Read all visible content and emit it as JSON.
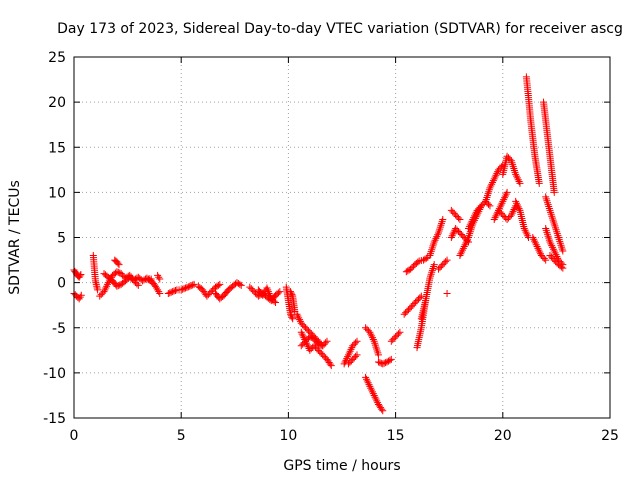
{
  "chart_data": {
    "type": "scatter",
    "title": "Day 173 of 2023, Sidereal Day-to-day VTEC variation (SDTVAR) for receiver ascg",
    "xlabel": "GPS time / hours",
    "ylabel": "SDTVAR / TECUs",
    "xlim": [
      0,
      25
    ],
    "ylim": [
      -15,
      25
    ],
    "xticks": [
      0,
      5,
      10,
      15,
      20,
      25
    ],
    "yticks": [
      -15,
      -10,
      -5,
      0,
      5,
      10,
      15,
      20,
      25
    ],
    "xtick_labels": [
      "0",
      "5",
      "10",
      "15",
      "20",
      "25"
    ],
    "ytick_labels": [
      "-15",
      "-10",
      "-5",
      "0",
      "5",
      "10",
      "15",
      "20",
      "25"
    ],
    "grid": true,
    "marker": "+",
    "series_color": "#ff0000",
    "tracks": [
      {
        "x": [
          0.0,
          0.08,
          0.16,
          0.24,
          0.32
        ],
        "y": [
          1.4,
          1.1,
          0.8,
          0.6,
          0.9
        ]
      },
      {
        "x": [
          0.0,
          0.12,
          0.24,
          0.34
        ],
        "y": [
          -1.2,
          -1.5,
          -1.8,
          -1.4
        ]
      },
      {
        "x": [
          0.9,
          1.0,
          1.1
        ],
        "y": [
          3.0,
          0.2,
          -0.8
        ]
      },
      {
        "x": [
          1.2,
          1.4,
          1.6,
          1.8,
          2.0,
          2.2,
          2.4,
          2.6,
          2.8,
          3.0,
          3.2,
          3.4,
          3.6
        ],
        "y": [
          -1.5,
          -1.0,
          0.0,
          0.8,
          1.2,
          1.0,
          0.5,
          0.8,
          0.3,
          0.6,
          0.2,
          0.5,
          0.4
        ]
      },
      {
        "x": [
          1.4,
          1.6,
          1.8,
          2.0,
          2.2,
          2.4,
          2.6,
          2.8,
          3.0
        ],
        "y": [
          1.0,
          0.6,
          0.2,
          -0.4,
          -0.2,
          0.2,
          0.6,
          0.2,
          -0.3
        ]
      },
      {
        "x": [
          1.9,
          2.0,
          2.1
        ],
        "y": [
          2.5,
          2.3,
          2.0
        ]
      },
      {
        "x": [
          3.4,
          3.6,
          3.8,
          4.0
        ],
        "y": [
          0.4,
          0.2,
          -0.4,
          -1.2
        ]
      },
      {
        "x": [
          3.9,
          4.0
        ],
        "y": [
          0.8,
          0.4
        ]
      },
      {
        "x": [
          4.4,
          4.6,
          4.8,
          5.0,
          5.2,
          5.4,
          5.6
        ],
        "y": [
          -1.2,
          -1.0,
          -0.8,
          -0.8,
          -0.6,
          -0.4,
          -0.2
        ]
      },
      {
        "x": [
          5.8,
          6.0,
          6.2,
          6.4,
          6.6,
          6.8
        ],
        "y": [
          -0.4,
          -0.8,
          -1.5,
          -1.0,
          -0.5,
          -0.2
        ]
      },
      {
        "x": [
          6.6,
          6.8,
          7.0,
          7.2,
          7.4,
          7.6,
          7.8
        ],
        "y": [
          -1.2,
          -1.8,
          -1.4,
          -0.8,
          -0.4,
          0.0,
          -0.3
        ]
      },
      {
        "x": [
          8.2,
          8.4,
          8.6,
          8.8,
          9.0,
          9.2,
          9.4,
          9.6
        ],
        "y": [
          -0.5,
          -1.0,
          -1.5,
          -1.2,
          -1.6,
          -2.0,
          -1.4,
          -1.0
        ]
      },
      {
        "x": [
          8.6,
          8.8,
          9.0,
          9.2,
          9.4
        ],
        "y": [
          -0.8,
          -1.4,
          -0.6,
          -1.8,
          -2.2
        ]
      },
      {
        "x": [
          9.9,
          10.0,
          10.1,
          10.2
        ],
        "y": [
          -0.5,
          -2.0,
          -3.5,
          -4.0
        ]
      },
      {
        "x": [
          10.1,
          10.2,
          10.3
        ],
        "y": [
          -1.0,
          -1.5,
          -3.2
        ]
      },
      {
        "x": [
          10.6,
          10.8,
          11.0,
          11.2,
          11.4,
          11.6,
          11.8,
          12.0
        ],
        "y": [
          -5.5,
          -6.5,
          -7.5,
          -7.0,
          -7.5,
          -8.0,
          -8.5,
          -9.2
        ]
      },
      {
        "x": [
          10.6,
          10.8,
          11.0,
          11.2,
          11.4,
          11.6,
          11.8
        ],
        "y": [
          -7.0,
          -6.5,
          -6.0,
          -6.2,
          -6.8,
          -7.0,
          -6.5
        ]
      },
      {
        "x": [
          10.4,
          10.6,
          10.8,
          11.0,
          11.2,
          11.4,
          11.6
        ],
        "y": [
          -3.5,
          -4.5,
          -5.0,
          -5.5,
          -6.0,
          -6.5,
          -7.0
        ]
      },
      {
        "x": [
          12.6,
          12.8,
          13.0,
          13.2
        ],
        "y": [
          -9.0,
          -8.0,
          -7.0,
          -6.5
        ]
      },
      {
        "x": [
          12.8,
          13.0,
          13.2
        ],
        "y": [
          -9.0,
          -8.5,
          -8.0
        ]
      },
      {
        "x": [
          13.6,
          13.8,
          14.0,
          14.2,
          14.4
        ],
        "y": [
          -10.5,
          -11.5,
          -12.5,
          -13.5,
          -14.2
        ]
      },
      {
        "x": [
          13.6,
          13.8,
          14.0,
          14.2
        ],
        "y": [
          -5.0,
          -5.5,
          -6.5,
          -8.0
        ]
      },
      {
        "x": [
          14.2,
          14.4,
          14.6,
          14.8
        ],
        "y": [
          -8.8,
          -9.0,
          -8.8,
          -8.5
        ]
      },
      {
        "x": [
          14.8,
          15.0,
          15.2
        ],
        "y": [
          -6.5,
          -6.0,
          -5.5
        ]
      },
      {
        "x": [
          15.4,
          15.6,
          15.8,
          16.0,
          16.2
        ],
        "y": [
          -3.5,
          -3.0,
          -2.5,
          -2.0,
          -1.5
        ]
      },
      {
        "x": [
          15.5,
          15.7,
          15.9,
          16.1,
          16.3,
          16.5
        ],
        "y": [
          1.2,
          1.5,
          2.0,
          2.4,
          2.5,
          2.8
        ]
      },
      {
        "x": [
          16.0,
          16.2,
          16.4
        ],
        "y": [
          -7.2,
          -5.0,
          -2.0
        ]
      },
      {
        "x": [
          16.2,
          16.4,
          16.6,
          16.8
        ],
        "y": [
          -4.0,
          -2.0,
          0.5,
          2.0
        ]
      },
      {
        "x": [
          16.6,
          16.8,
          17.0,
          17.2
        ],
        "y": [
          3.0,
          4.5,
          5.5,
          7.0
        ]
      },
      {
        "x": [
          17.0,
          17.2,
          17.4
        ],
        "y": [
          1.5,
          2.0,
          2.5
        ]
      },
      {
        "x": [
          17.4
        ],
        "y": [
          -1.2
        ]
      },
      {
        "x": [
          17.6,
          17.8,
          18.0,
          18.2,
          18.4
        ],
        "y": [
          5.0,
          6.0,
          5.5,
          5.0,
          4.5
        ]
      },
      {
        "x": [
          17.6,
          17.8,
          18.0
        ],
        "y": [
          8.0,
          7.5,
          7.0
        ]
      },
      {
        "x": [
          18.0,
          18.2,
          18.4,
          18.6,
          18.8,
          19.0
        ],
        "y": [
          3.0,
          4.0,
          5.0,
          6.5,
          7.5,
          8.5
        ]
      },
      {
        "x": [
          18.4,
          18.6,
          18.8,
          19.0,
          19.2,
          19.4
        ],
        "y": [
          6.0,
          7.0,
          8.0,
          8.5,
          9.0,
          8.5
        ]
      },
      {
        "x": [
          19.2,
          19.4,
          19.6,
          19.8,
          20.0
        ],
        "y": [
          9.0,
          10.5,
          11.5,
          12.5,
          13.0
        ]
      },
      {
        "x": [
          19.6,
          19.8,
          20.0,
          20.2
        ],
        "y": [
          7.0,
          8.0,
          9.0,
          10.0
        ]
      },
      {
        "x": [
          19.8,
          20.0,
          20.2,
          20.4,
          20.6
        ],
        "y": [
          8.0,
          7.5,
          7.0,
          7.5,
          8.5
        ]
      },
      {
        "x": [
          20.0,
          20.2,
          20.4,
          20.6,
          20.8
        ],
        "y": [
          12.0,
          14.0,
          13.5,
          12.0,
          11.0
        ]
      },
      {
        "x": [
          20.6,
          20.8,
          21.0,
          21.2
        ],
        "y": [
          9.0,
          8.0,
          6.0,
          5.0
        ]
      },
      {
        "x": [
          21.1,
          21.2,
          21.3,
          21.4,
          21.5,
          21.6,
          21.7
        ],
        "y": [
          22.8,
          20.5,
          18.0,
          16.0,
          14.0,
          12.5,
          11.0
        ]
      },
      {
        "x": [
          21.4,
          21.6,
          21.8,
          22.0
        ],
        "y": [
          5.0,
          4.0,
          3.0,
          2.5
        ]
      },
      {
        "x": [
          21.9,
          22.0,
          22.1,
          22.2,
          22.3,
          22.4
        ],
        "y": [
          20.0,
          18.0,
          16.0,
          14.0,
          12.0,
          10.0
        ]
      },
      {
        "x": [
          22.0,
          22.2,
          22.4,
          22.6,
          22.8
        ],
        "y": [
          9.5,
          8.0,
          6.5,
          5.0,
          3.5
        ]
      },
      {
        "x": [
          22.0,
          22.2,
          22.4,
          22.6,
          22.8
        ],
        "y": [
          6.0,
          4.5,
          3.5,
          2.5,
          2.0
        ]
      },
      {
        "x": [
          22.2,
          22.4,
          22.6,
          22.8
        ],
        "y": [
          3.0,
          2.5,
          2.0,
          1.6
        ]
      }
    ]
  }
}
